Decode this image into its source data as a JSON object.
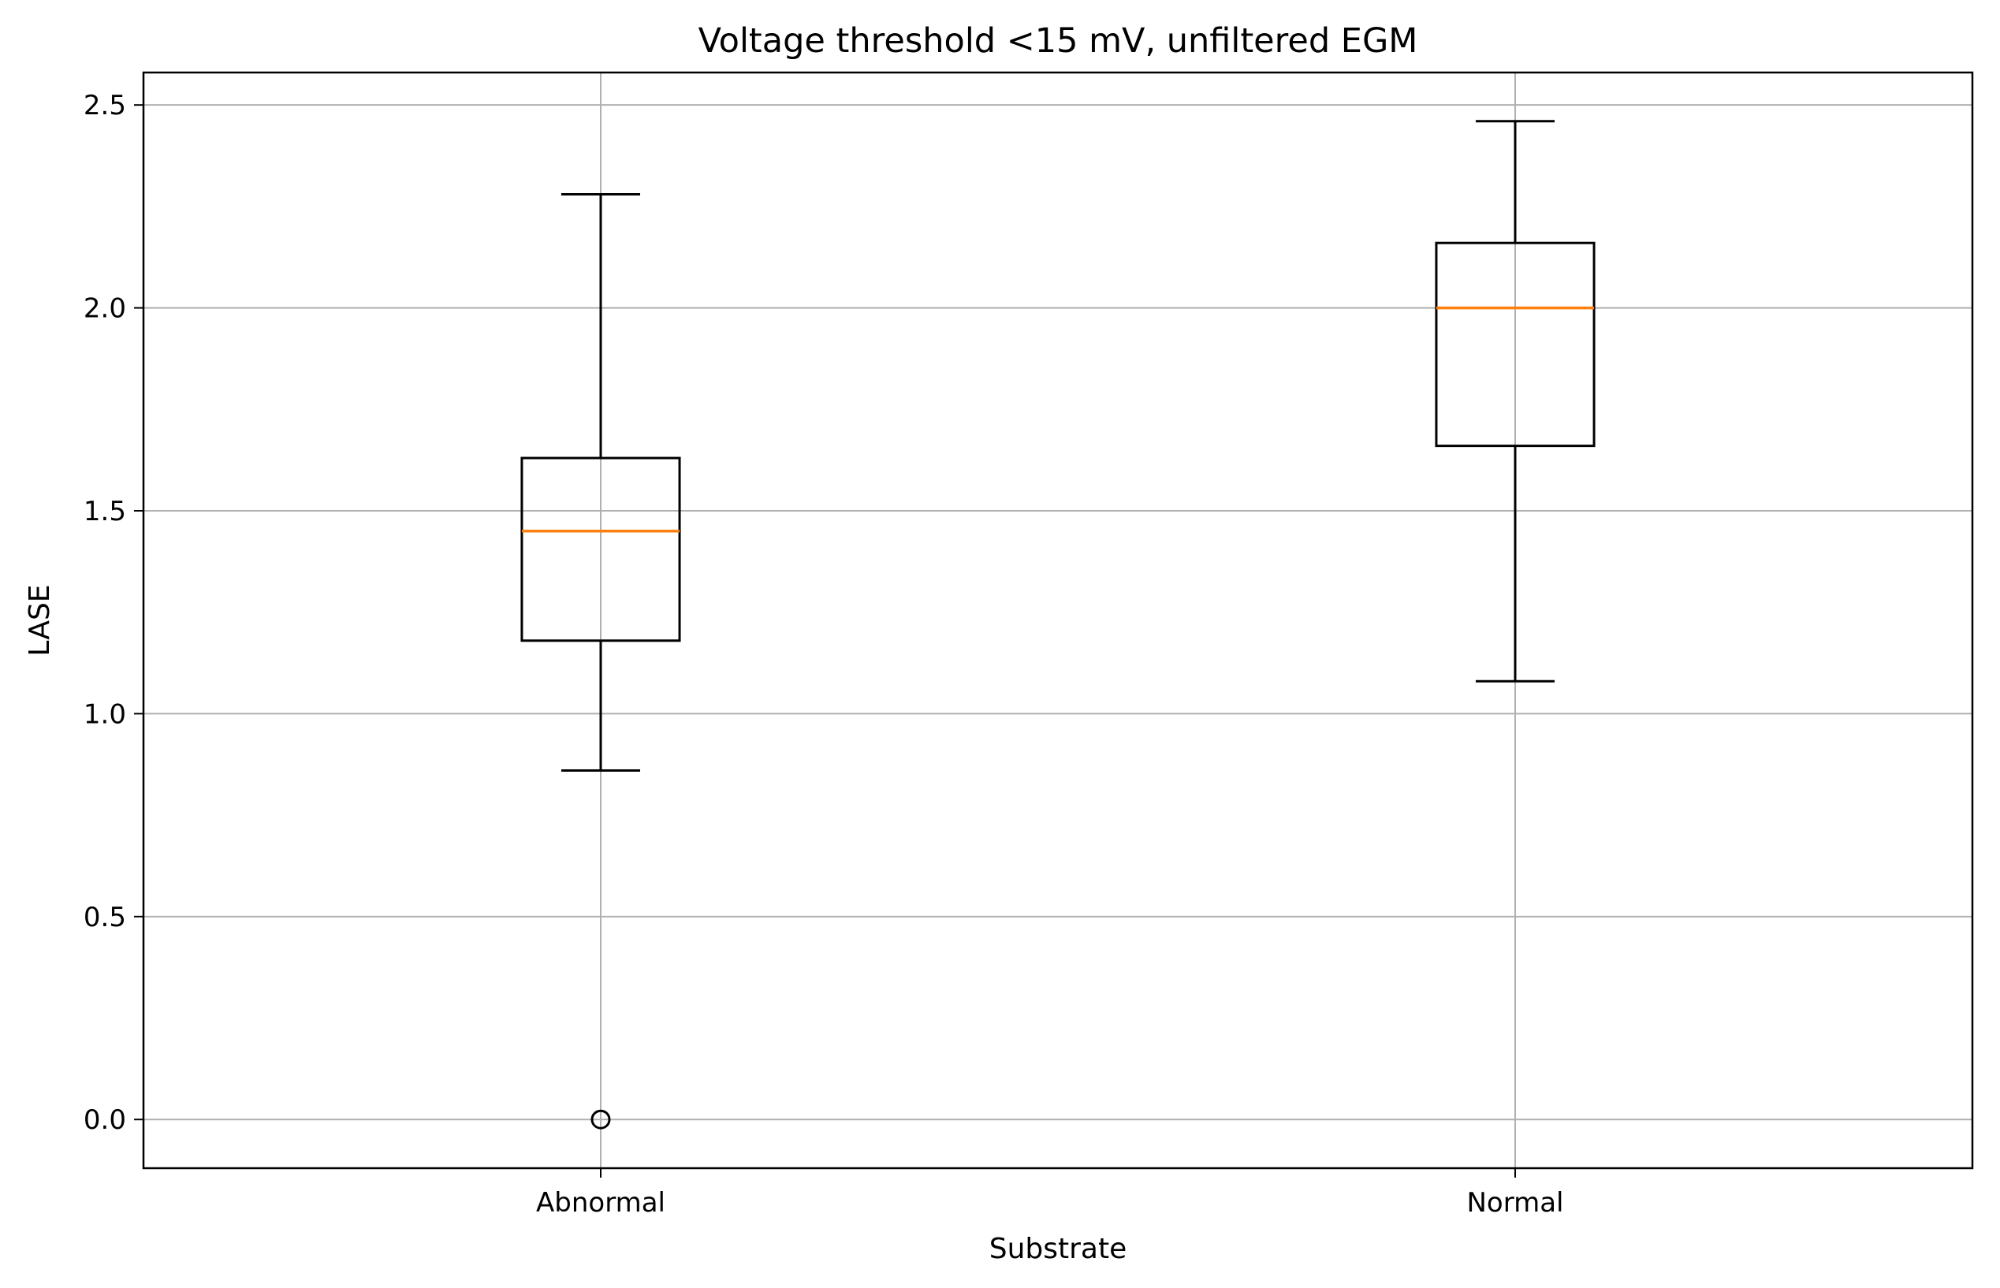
{
  "chart_data": {
    "type": "box",
    "title": "Voltage threshold <15 mV, unfiltered EGM",
    "xlabel": "Substrate",
    "ylabel": "LASE",
    "categories": [
      "Abnormal",
      "Normal"
    ],
    "ylim": [
      -0.12,
      2.58
    ],
    "yticks": [
      0.0,
      0.5,
      1.0,
      1.5,
      2.0,
      2.5
    ],
    "ytick_labels": [
      "0.0",
      "0.5",
      "1.0",
      "1.5",
      "2.0",
      "2.5"
    ],
    "grid": true,
    "boxes": [
      {
        "category": "Abnormal",
        "whisker_low": 0.86,
        "q1": 1.18,
        "median": 1.45,
        "q3": 1.63,
        "whisker_high": 2.28,
        "outliers": [
          0.0
        ]
      },
      {
        "category": "Normal",
        "whisker_low": 1.08,
        "q1": 1.66,
        "median": 2.0,
        "q3": 2.16,
        "whisker_high": 2.46,
        "outliers": []
      }
    ],
    "colors": {
      "box": "#000000",
      "median": "#ff7f0e",
      "grid": "#b0b0b0"
    }
  }
}
